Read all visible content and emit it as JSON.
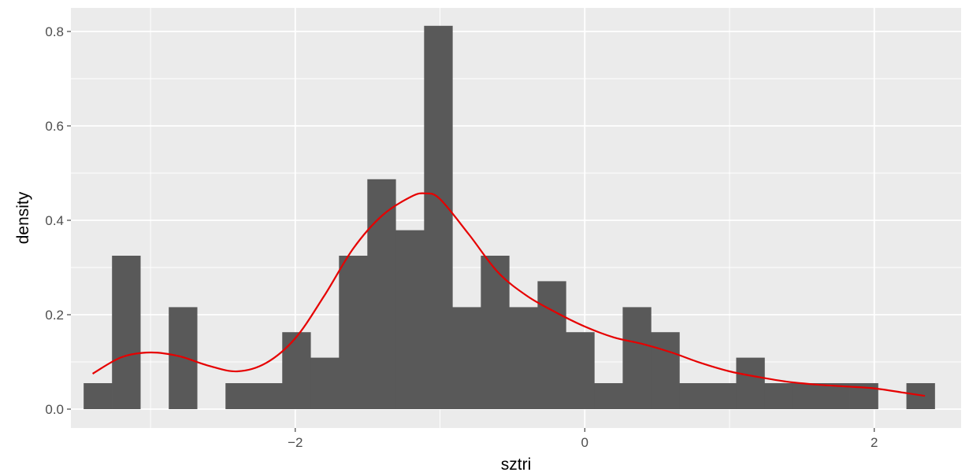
{
  "chart_data": {
    "type": "bar",
    "title": "",
    "xlabel": "sztri",
    "ylabel": "density",
    "xlim": [
      -3.55,
      2.6
    ],
    "ylim": [
      -0.04,
      0.85
    ],
    "grid": true,
    "bin_width": 0.196,
    "bin_start": -3.462,
    "bars": [
      0.055,
      0.325,
      0.0,
      0.216,
      0.0,
      0.055,
      0.055,
      0.163,
      0.109,
      0.325,
      0.487,
      0.379,
      0.812,
      0.216,
      0.325,
      0.216,
      0.271,
      0.163,
      0.055,
      0.216,
      0.163,
      0.055,
      0.055,
      0.109,
      0.055,
      0.055,
      0.055,
      0.055,
      0.0,
      0.055
    ],
    "x_ticks": [
      -2,
      0,
      2
    ],
    "x_tick_labels": [
      "−2",
      "0",
      "2"
    ],
    "y_ticks": [
      0.0,
      0.2,
      0.4,
      0.6,
      0.8
    ],
    "y_tick_labels": [
      "0.0",
      "0.2",
      "0.4",
      "0.6",
      "0.8"
    ],
    "density_curve": {
      "color": "#e60000",
      "x": [
        -3.4,
        -3.2,
        -3.0,
        -2.8,
        -2.6,
        -2.4,
        -2.2,
        -2.0,
        -1.8,
        -1.6,
        -1.4,
        -1.2,
        -1.1,
        -1.0,
        -0.8,
        -0.6,
        -0.4,
        -0.2,
        0.0,
        0.2,
        0.4,
        0.6,
        0.8,
        1.0,
        1.2,
        1.4,
        1.6,
        1.8,
        2.0,
        2.2,
        2.35
      ],
      "y": [
        0.075,
        0.11,
        0.12,
        0.112,
        0.092,
        0.08,
        0.098,
        0.15,
        0.24,
        0.34,
        0.41,
        0.45,
        0.457,
        0.445,
        0.37,
        0.29,
        0.24,
        0.205,
        0.175,
        0.152,
        0.138,
        0.12,
        0.098,
        0.08,
        0.068,
        0.058,
        0.052,
        0.048,
        0.044,
        0.035,
        0.028
      ]
    },
    "colors": {
      "panel_bg": "#ebebeb",
      "grid_major": "#ffffff",
      "bar_fill": "#595959"
    }
  }
}
